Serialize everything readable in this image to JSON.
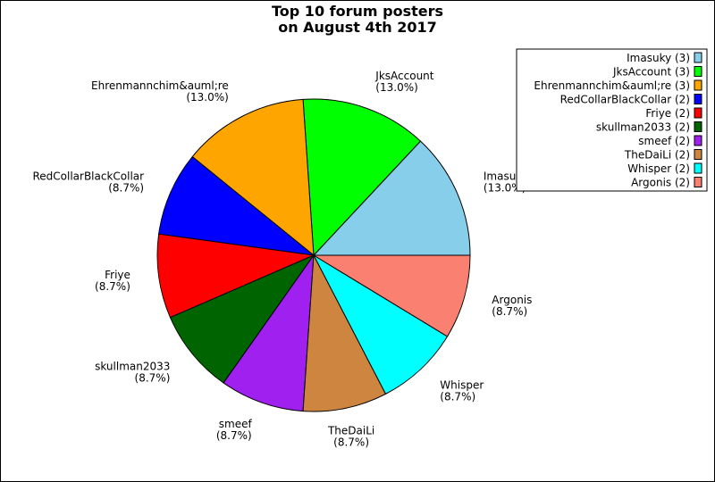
{
  "chart_data": {
    "type": "pie",
    "title": [
      "Top 10 forum posters",
      "on August 4th 2017"
    ],
    "legend_position": "top-right",
    "slices": [
      {
        "name": "Imasuky",
        "value": 3,
        "percent": "13.0%",
        "legend": "Imasuky (3)",
        "color": "#87ceeb"
      },
      {
        "name": "JksAccount",
        "value": 3,
        "percent": "13.0%",
        "legend": "JksAccount (3)",
        "color": "#00ff00"
      },
      {
        "name": "Ehrenmannchim&auml;re",
        "value": 3,
        "percent": "13.0%",
        "legend": "Ehrenmannchim&auml;re (3)",
        "color": "#ffa500"
      },
      {
        "name": "RedCollarBlackCollar",
        "value": 2,
        "percent": "8.7%",
        "legend": "RedCollarBlackCollar (2)",
        "color": "#0000ff"
      },
      {
        "name": "Friye",
        "value": 2,
        "percent": "8.7%",
        "legend": "Friye (2)",
        "color": "#ff0000"
      },
      {
        "name": "skullman2033",
        "value": 2,
        "percent": "8.7%",
        "legend": "skullman2033 (2)",
        "color": "#006400"
      },
      {
        "name": "smeef",
        "value": 2,
        "percent": "8.7%",
        "legend": "smeef (2)",
        "color": "#a020f0"
      },
      {
        "name": "TheDaiLi",
        "value": 2,
        "percent": "8.7%",
        "legend": "TheDaiLi (2)",
        "color": "#cd853f"
      },
      {
        "name": "Whisper",
        "value": 2,
        "percent": "8.7%",
        "legend": "Whisper (2)",
        "color": "#00ffff"
      },
      {
        "name": "Argonis",
        "value": 2,
        "percent": "8.7%",
        "legend": "Argonis (2)",
        "color": "#fa8072"
      }
    ]
  }
}
